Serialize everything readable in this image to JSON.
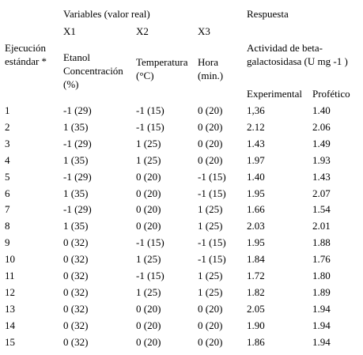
{
  "header": {
    "variables": "Variables (valor real)",
    "response": "Respuesta",
    "x1": "X1",
    "x2": "X2",
    "x3": "X3",
    "run": "Ejecución estándar *",
    "ethanol": "Etanol Concentración (%)",
    "temperature": "Temperatura (°C)",
    "time": "Hora (min.)",
    "activity": "Actividad de beta-galactosidasa (U mg -1 )",
    "experimental": "Experimental",
    "predicted": "Profético"
  },
  "table": {
    "rows": [
      [
        "1",
        "-1 (29)",
        "-1 (15)",
        "0 (20)",
        "1,36",
        "1.40"
      ],
      [
        "2",
        "1 (35)",
        "-1 (15)",
        "0 (20)",
        "2.12",
        "2.06"
      ],
      [
        "3",
        "-1 (29)",
        "1 (25)",
        "0 (20)",
        "1.43",
        "1.49"
      ],
      [
        "4",
        "1 (35)",
        "1 (25)",
        "0 (20)",
        "1.97",
        "1.93"
      ],
      [
        "5",
        "-1 (29)",
        "0 (20)",
        "-1 (15)",
        "1.40",
        "1.43"
      ],
      [
        "6",
        "1 (35)",
        "0 (20)",
        "-1 (15)",
        "1.95",
        "2.07"
      ],
      [
        "7",
        "-1 (29)",
        "0 (20)",
        "1 (25)",
        "1.66",
        "1.54"
      ],
      [
        "8",
        "1 (35)",
        "0 (20)",
        "1 (25)",
        "2.03",
        "2.01"
      ],
      [
        "9",
        "0 (32)",
        "-1 (15)",
        "-1 (15)",
        "1.95",
        "1.88"
      ],
      [
        "10",
        "0 (32)",
        "1 (25)",
        "-1 (15)",
        "1.84",
        "1.76"
      ],
      [
        "11",
        "0 (32)",
        "-1 (15)",
        "1 (25)",
        "1.72",
        "1.80"
      ],
      [
        "12",
        "0 (32)",
        "1 (25)",
        "1 (25)",
        "1.82",
        "1.89"
      ],
      [
        "13",
        "0 (32)",
        "0 (20)",
        "0 (20)",
        "2.05",
        "1.94"
      ],
      [
        "14",
        "0 (32)",
        "0 (20)",
        "0 (20)",
        "1.90",
        "1.94"
      ],
      [
        "15",
        "0 (32)",
        "0 (20)",
        "0 (20)",
        "1.86",
        "1.94"
      ]
    ]
  }
}
